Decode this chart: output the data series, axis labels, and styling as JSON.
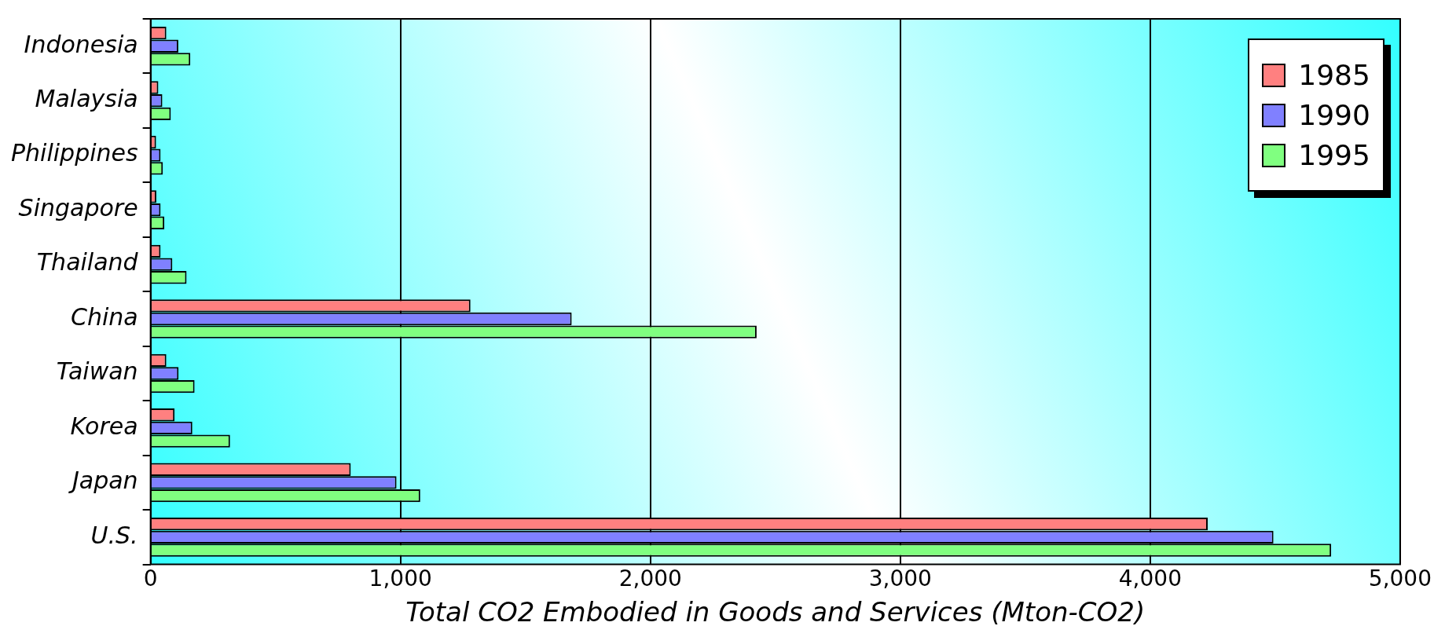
{
  "chart_data": {
    "type": "bar",
    "orientation": "horizontal",
    "xlabel": "Total CO2 Embodied in Goods and Services (Mton-CO2)",
    "categories": [
      "Indonesia",
      "Malaysia",
      "Philippines",
      "Singapore",
      "Thailand",
      "China",
      "Taiwan",
      "Korea",
      "Japan",
      "U.S."
    ],
    "series": [
      {
        "name": "1985",
        "color": "#ff8080",
        "values": [
          63,
          31,
          22,
          23,
          40,
          1280,
          63,
          96,
          801,
          4230
        ]
      },
      {
        "name": "1990",
        "color": "#8080ff",
        "values": [
          111,
          47,
          40,
          40,
          87,
          1685,
          112,
          167,
          984,
          4493
        ]
      },
      {
        "name": "1995",
        "color": "#80ff80",
        "values": [
          159,
          81,
          49,
          55,
          144,
          2425,
          176,
          318,
          1079,
          4724
        ]
      }
    ],
    "xlim": [
      0,
      5000
    ],
    "xticks": [
      {
        "value": 0,
        "label": "0"
      },
      {
        "value": 1000,
        "label": "1,000"
      },
      {
        "value": 2000,
        "label": "2,000"
      },
      {
        "value": 3000,
        "label": "3,000"
      },
      {
        "value": 4000,
        "label": "4,000"
      },
      {
        "value": 5000,
        "label": "5,000"
      }
    ],
    "grid": "x",
    "legend": "top right"
  }
}
